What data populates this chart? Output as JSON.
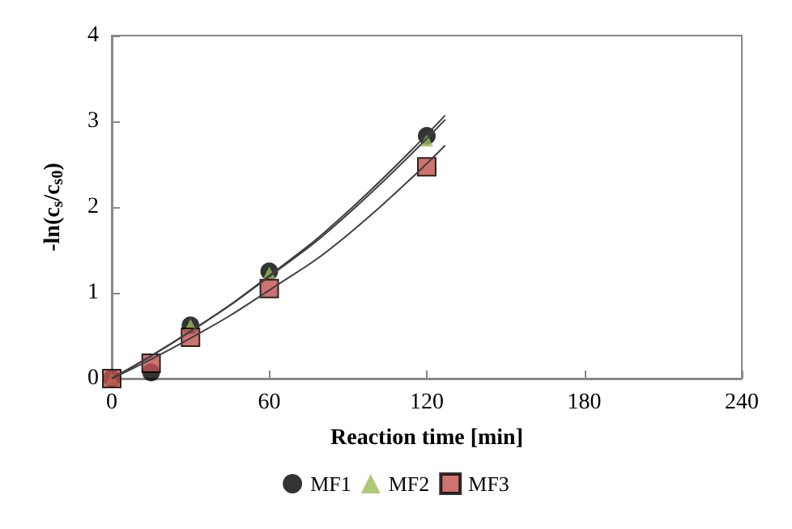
{
  "chart_data": {
    "type": "scatter",
    "xlabel": "Reaction time [min]",
    "ylabel": "-ln(c$_{s}$/c$_{s0}$)",
    "x": [
      0,
      15,
      30,
      60,
      120
    ],
    "series": [
      {
        "name": "MF1",
        "color": "#000000",
        "marker": "circle",
        "values": [
          0,
          0.07,
          0.62,
          1.25,
          2.83
        ]
      },
      {
        "name": "MF2",
        "color": "#9bbb59",
        "marker": "triangle",
        "values": [
          0,
          null,
          0.62,
          1.23,
          2.78
        ]
      },
      {
        "name": "MF3",
        "color": "#c0504d",
        "marker": "square",
        "values": [
          0,
          0.18,
          0.48,
          1.05,
          2.47
        ]
      },
      {
        "type": "line",
        "color": "#404040",
        "marker": "none",
        "x": [
          0,
          30,
          60,
          90,
          127
        ],
        "values": [
          0,
          0.55,
          1.2,
          1.95,
          3.07
        ]
      },
      {
        "type": "line",
        "color": "#404040",
        "marker": "none",
        "x": [
          0,
          30,
          60,
          90,
          127
        ],
        "values": [
          0,
          0.55,
          1.19,
          1.92,
          3.02
        ]
      },
      {
        "type": "line",
        "color": "#404040",
        "marker": "none",
        "x": [
          0,
          30,
          60,
          90,
          127
        ],
        "values": [
          0,
          0.47,
          1.03,
          1.68,
          2.72
        ]
      }
    ],
    "xlim": [
      0,
      240
    ],
    "xticks": [
      0,
      60,
      120,
      180,
      240
    ],
    "ylim": [
      0,
      4
    ],
    "yticks": [
      0,
      1,
      2,
      3,
      4
    ],
    "grid": false,
    "legend": "bottom"
  }
}
